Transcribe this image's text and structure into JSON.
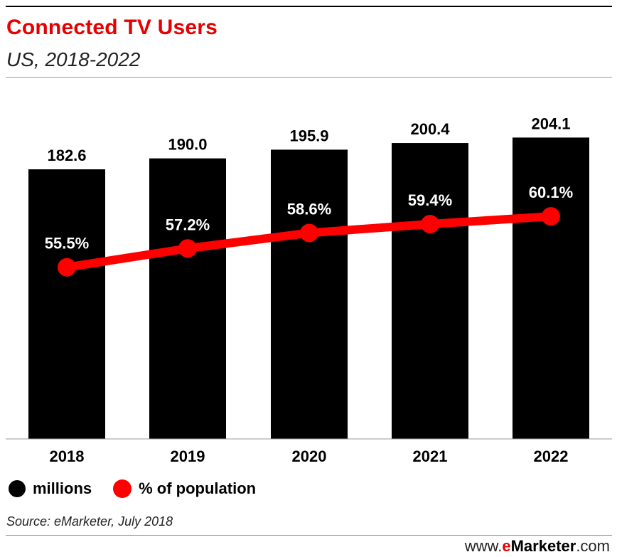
{
  "header": {
    "title": "Connected TV Users",
    "subtitle": "US, 2018-2022"
  },
  "legend": {
    "bars_label": "millions",
    "line_label": "% of population"
  },
  "footer": {
    "source": "Source: eMarketer, July 2018",
    "brand_prefix": "www.",
    "brand_e": "e",
    "brand_marketer": "Marketer",
    "brand_suffix": ".com"
  },
  "colors": {
    "bars": "#000000",
    "line": "#ff0000",
    "title": "#e60000"
  },
  "chart_data": {
    "type": "bar",
    "title": "Connected TV Users",
    "subtitle": "US, 2018-2022",
    "categories": [
      "2018",
      "2019",
      "2020",
      "2021",
      "2022"
    ],
    "series": [
      {
        "name": "millions",
        "type": "bar",
        "values": [
          182.6,
          190.0,
          195.9,
          200.4,
          204.1
        ],
        "labels": [
          "182.6",
          "190.0",
          "195.9",
          "200.4",
          "204.1"
        ]
      },
      {
        "name": "% of population",
        "type": "line",
        "values": [
          55.5,
          57.2,
          58.6,
          59.4,
          60.1
        ],
        "labels": [
          "55.5%",
          "57.2%",
          "58.6%",
          "59.4%",
          "60.1%"
        ]
      }
    ],
    "bar_axis": [
      0,
      225
    ],
    "line_axis": [
      40,
      70
    ],
    "grid": false,
    "legend_position": "bottom-left"
  }
}
